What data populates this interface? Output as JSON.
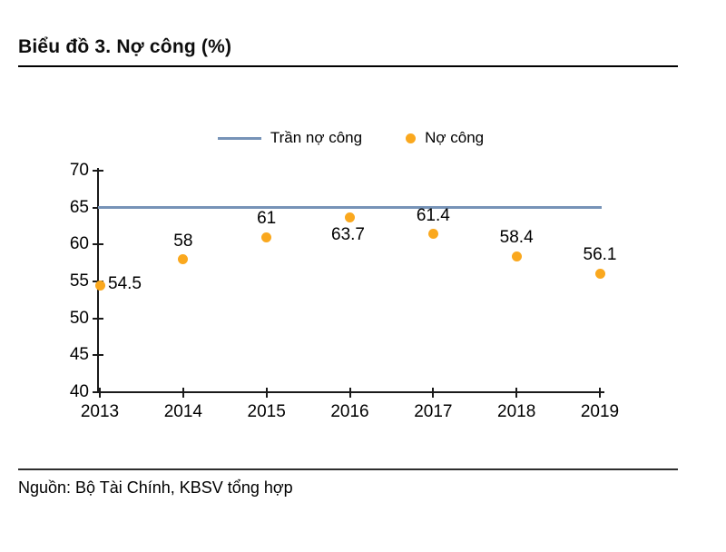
{
  "header": {
    "title": "Biểu đồ 3. Nợ công (%)"
  },
  "footer": {
    "source": "Nguồn: Bộ Tài Chính, KBSV tổng hợp"
  },
  "colors": {
    "ceiling_line": "#7693B7",
    "point": "#FAA81E",
    "axis": "#1a1a1a",
    "text": "#000000"
  },
  "chart_data": {
    "type": "scatter",
    "title": "Biểu đồ 3. Nợ công (%)",
    "categories": [
      "2013",
      "2014",
      "2015",
      "2016",
      "2017",
      "2018",
      "2019"
    ],
    "series": [
      {
        "name": "Trần nợ công",
        "type": "line",
        "values": [
          65,
          65,
          65,
          65,
          65,
          65,
          65
        ]
      },
      {
        "name": "Nợ công",
        "type": "scatter",
        "values": [
          54.5,
          58,
          61,
          63.7,
          61.4,
          58.4,
          56.1
        ]
      }
    ],
    "point_labels": [
      "54.5",
      "58",
      "61",
      "63.7",
      "61.4",
      "58.4",
      "56.1"
    ],
    "label_positions": [
      "right",
      "above",
      "above",
      "below",
      "above",
      "above",
      "above"
    ],
    "ylim": [
      40,
      70
    ],
    "yticks": [
      40,
      45,
      50,
      55,
      60,
      65,
      70
    ],
    "xlabel": "",
    "ylabel": "",
    "grid": false,
    "legend_position": "top-center"
  }
}
